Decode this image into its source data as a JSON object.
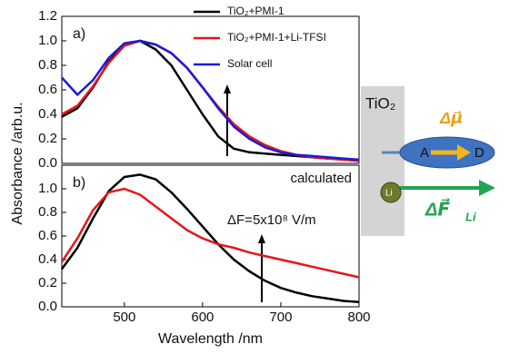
{
  "chart_data": [
    {
      "type": "line",
      "panel_label": "a)",
      "ylabel": "Absorbance /arb.u.",
      "ylim": [
        0,
        1.2
      ],
      "yticks": [
        {
          "value": 0,
          "label": "0.0"
        },
        {
          "value": 0.2,
          "label": "0.2"
        },
        {
          "value": 0.4,
          "label": "0.4"
        },
        {
          "value": 0.6,
          "label": "0.6"
        },
        {
          "value": 0.8,
          "label": "0.8"
        },
        {
          "value": 1,
          "label": "1.0"
        },
        {
          "value": 1.2,
          "label": "1.2"
        }
      ],
      "xlim": [
        420,
        800
      ],
      "x": [
        420,
        440,
        460,
        480,
        500,
        520,
        540,
        560,
        580,
        600,
        620,
        640,
        660,
        680,
        700,
        720,
        740,
        760,
        780,
        800
      ],
      "series": [
        {
          "name": "TiO₂+PMI-1",
          "color": "#000000",
          "values": [
            0.38,
            0.45,
            0.62,
            0.83,
            0.97,
            1.0,
            0.93,
            0.8,
            0.6,
            0.4,
            0.22,
            0.12,
            0.09,
            0.08,
            0.07,
            0.06,
            0.05,
            0.04,
            0.03,
            0.02
          ]
        },
        {
          "name": "TiO₂+PMI-1+Li-TFSI",
          "color": "#e8141b",
          "values": [
            0.4,
            0.47,
            0.63,
            0.82,
            0.96,
            1.0,
            0.97,
            0.9,
            0.78,
            0.62,
            0.46,
            0.32,
            0.22,
            0.15,
            0.1,
            0.07,
            0.05,
            0.04,
            0.03,
            0.02
          ]
        },
        {
          "name": "Solar cell",
          "color": "#1a1adc",
          "values": [
            0.7,
            0.56,
            0.68,
            0.86,
            0.98,
            1.0,
            0.97,
            0.9,
            0.78,
            0.62,
            0.45,
            0.3,
            0.2,
            0.13,
            0.09,
            0.07,
            0.06,
            0.05,
            0.04,
            0.03
          ]
        }
      ]
    },
    {
      "type": "line",
      "panel_label": "b)",
      "annotation": "calculated",
      "field_label": "ΔF=5x10⁸ V/m",
      "xlabel": "Wavelength /nm",
      "ylim": [
        0,
        1.2
      ],
      "yticks": [
        {
          "value": 0,
          "label": "0.0"
        },
        {
          "value": 0.2,
          "label": "0.2"
        },
        {
          "value": 0.4,
          "label": "0.4"
        },
        {
          "value": 0.6,
          "label": "0.6"
        },
        {
          "value": 0.8,
          "label": "0.8"
        },
        {
          "value": 1,
          "label": "1.0"
        }
      ],
      "xlim": [
        420,
        800
      ],
      "xticks": [
        500,
        600,
        700,
        800
      ],
      "x": [
        420,
        440,
        460,
        480,
        500,
        520,
        540,
        560,
        580,
        600,
        620,
        640,
        660,
        680,
        700,
        720,
        740,
        760,
        780,
        800
      ],
      "series": [
        {
          "color": "#000000",
          "values": [
            0.32,
            0.5,
            0.75,
            0.98,
            1.1,
            1.12,
            1.08,
            0.97,
            0.83,
            0.68,
            0.53,
            0.4,
            0.3,
            0.22,
            0.16,
            0.12,
            0.09,
            0.07,
            0.05,
            0.04
          ]
        },
        {
          "color": "#e8141b",
          "values": [
            0.38,
            0.58,
            0.82,
            0.97,
            1.0,
            0.95,
            0.85,
            0.75,
            0.65,
            0.58,
            0.53,
            0.5,
            0.46,
            0.43,
            0.4,
            0.37,
            0.34,
            0.31,
            0.28,
            0.25
          ]
        }
      ]
    }
  ],
  "diagram": {
    "substrate": "TiO₂",
    "acceptor": "A",
    "donor": "D",
    "dipole_label": "Δμ⃗",
    "lithium": "Li",
    "field_label": "ΔF⃗"
  }
}
